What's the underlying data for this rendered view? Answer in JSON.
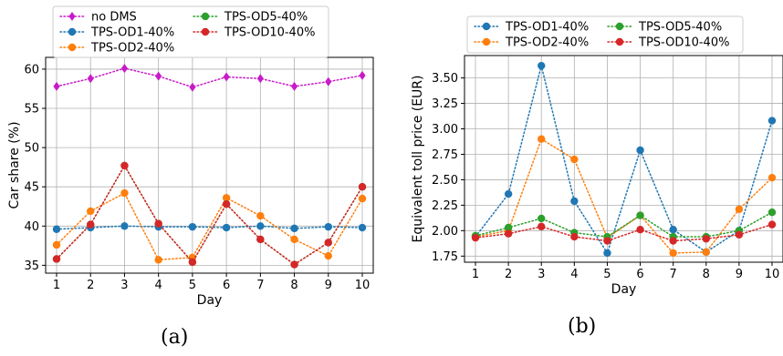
{
  "chart_data": [
    {
      "type": "line",
      "panel_label": "(a)",
      "xlabel": "Day",
      "ylabel": "Car share (%)",
      "categories": [
        1,
        2,
        3,
        4,
        5,
        6,
        7,
        8,
        9,
        10
      ],
      "ylim": [
        34,
        61.5
      ],
      "yticks": [
        35,
        40,
        45,
        50,
        55,
        60
      ],
      "grid": true,
      "legend_placement": "top-left, above axes, 2 columns",
      "series": [
        {
          "name": "no DMS",
          "marker": "diamond",
          "color": "#c81bc8",
          "values": [
            57.8,
            58.8,
            60.1,
            59.1,
            57.7,
            59.0,
            58.8,
            57.8,
            58.4,
            59.2
          ]
        },
        {
          "name": "TPS-OD1-40%",
          "marker": "circle",
          "color": "#1f77b4",
          "values": [
            39.6,
            39.8,
            40.0,
            39.9,
            39.9,
            39.8,
            40.0,
            39.7,
            39.9,
            39.8
          ]
        },
        {
          "name": "TPS-OD2-40%",
          "marker": "circle",
          "color": "#ff7f0e",
          "values": [
            37.6,
            41.9,
            44.2,
            35.7,
            36.0,
            43.6,
            41.3,
            38.3,
            36.2,
            43.5
          ]
        },
        {
          "name": "TPS-OD5-40%",
          "marker": "circle",
          "color": "#2ca02c",
          "values": [
            35.8,
            40.2,
            47.7,
            40.3,
            35.4,
            42.8,
            38.3,
            35.1,
            37.9,
            45.0
          ]
        },
        {
          "name": "TPS-OD10-40%",
          "marker": "circle",
          "color": "#d62728",
          "values": [
            35.8,
            40.2,
            47.7,
            40.3,
            35.4,
            42.8,
            38.3,
            35.1,
            37.9,
            45.0
          ]
        }
      ]
    },
    {
      "type": "line",
      "panel_label": "(b)",
      "xlabel": "Day",
      "ylabel": "Equivalent toll price (EUR)",
      "categories": [
        1,
        2,
        3,
        4,
        5,
        6,
        7,
        8,
        9,
        10
      ],
      "ylim": [
        1.69,
        3.72
      ],
      "yticks": [
        1.75,
        2.0,
        2.25,
        2.5,
        2.75,
        3.0,
        3.25,
        3.5
      ],
      "ytick_labels": [
        "1.75",
        "2.00",
        "2.25",
        "2.50",
        "2.75",
        "3.00",
        "3.25",
        "3.50"
      ],
      "grid": true,
      "legend_placement": "top, above axes, 2 columns",
      "series": [
        {
          "name": "TPS-OD1-40%",
          "marker": "circle",
          "color": "#1f77b4",
          "values": [
            1.94,
            2.36,
            3.62,
            2.29,
            1.78,
            2.79,
            2.01,
            1.79,
            2.0,
            3.08
          ]
        },
        {
          "name": "TPS-OD2-40%",
          "marker": "circle",
          "color": "#ff7f0e",
          "values": [
            1.94,
            2.0,
            2.9,
            2.7,
            1.93,
            2.15,
            1.78,
            1.79,
            2.21,
            2.52
          ]
        },
        {
          "name": "TPS-OD5-40%",
          "marker": "circle",
          "color": "#2ca02c",
          "values": [
            1.95,
            2.03,
            2.12,
            1.98,
            1.94,
            2.15,
            1.94,
            1.94,
            2.0,
            2.18
          ]
        },
        {
          "name": "TPS-OD10-40%",
          "marker": "circle",
          "color": "#d62728",
          "values": [
            1.93,
            1.97,
            2.04,
            1.94,
            1.9,
            2.01,
            1.9,
            1.92,
            1.96,
            2.06
          ]
        }
      ]
    }
  ]
}
